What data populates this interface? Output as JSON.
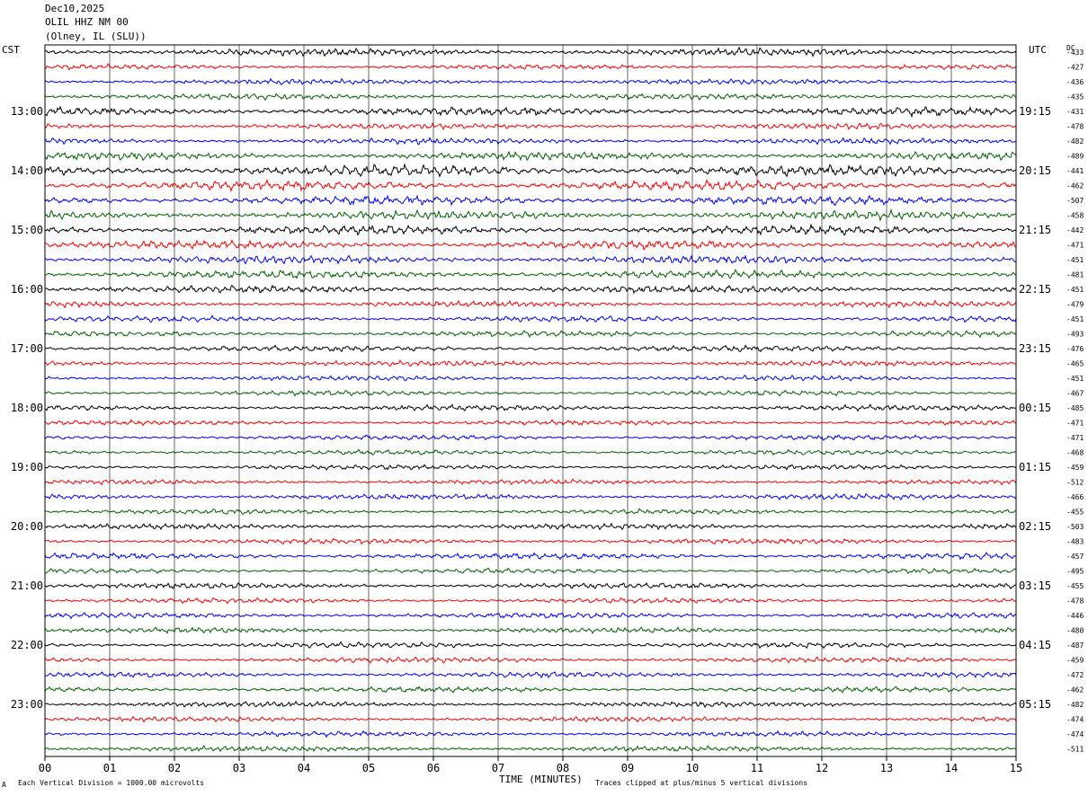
{
  "header": {
    "date": "Dec10,2025",
    "station": "OLIL HHZ NM 00",
    "location": "(Olney, IL (SLU))"
  },
  "left_tz": "CST",
  "right_tz": "UTC",
  "dc_label": "DC",
  "footer": {
    "vertical_division": "Each Vertical Division = 1000.00 microvolts",
    "x_title": "TIME (MINUTES)",
    "clip_note": "Traces clipped at plus/minus 5 vertical divisions",
    "corner_mark": "A"
  },
  "colors": {
    "trace_cycle": [
      "#000000",
      "#ff0000",
      "#0000ff",
      "#006400"
    ],
    "grid": "#000000",
    "background": "#ffffff"
  },
  "chart_data": {
    "type": "line",
    "title": "",
    "xlabel": "TIME (MINUTES)",
    "xlim": [
      0,
      15
    ],
    "x_ticks": [
      "00",
      "01",
      "02",
      "03",
      "04",
      "05",
      "06",
      "07",
      "08",
      "09",
      "10",
      "11",
      "12",
      "13",
      "14",
      "15"
    ],
    "rows_per_hour": 4,
    "left_hour_labels": [
      "13:00",
      "14:00",
      "15:00",
      "16:00",
      "17:00",
      "18:00",
      "19:00",
      "20:00",
      "21:00",
      "22:00",
      "23:00"
    ],
    "right_hour_labels": [
      "19:15",
      "20:15",
      "21:15",
      "22:15",
      "23:15",
      "00:15",
      "01:15",
      "02:15",
      "03:15",
      "04:15",
      "05:15"
    ],
    "dc_offsets": [
      "-433",
      "-427",
      "-436",
      "-435",
      "-431",
      "-478",
      "-482",
      "-489",
      "-441",
      "-462",
      "-507",
      "-458",
      "-442",
      "-471",
      "-451",
      "-481",
      "-451",
      "-479",
      "-451",
      "-493",
      "-476",
      "-465",
      "-451",
      "-467",
      "-485",
      "-471",
      "-471",
      "-468",
      "-459",
      "-512",
      "-466",
      "-455",
      "-503",
      "-483",
      "-457",
      "-495",
      "-455",
      "-478",
      "-446",
      "-480",
      "-487",
      "-459",
      "-472",
      "-462",
      "-482",
      "-474",
      "-474",
      "-511"
    ],
    "relative_amplitude": [
      0.75,
      0.5,
      0.55,
      0.6,
      0.85,
      0.6,
      0.6,
      0.8,
      1.1,
      1.0,
      0.9,
      0.85,
      0.9,
      0.85,
      0.8,
      0.8,
      0.75,
      0.6,
      0.6,
      0.55,
      0.6,
      0.55,
      0.5,
      0.5,
      0.55,
      0.5,
      0.5,
      0.5,
      0.5,
      0.5,
      0.55,
      0.5,
      0.55,
      0.55,
      0.6,
      0.5,
      0.55,
      0.5,
      0.55,
      0.55,
      0.55,
      0.55,
      0.55,
      0.55,
      0.55,
      0.5,
      0.5,
      0.55
    ]
  }
}
